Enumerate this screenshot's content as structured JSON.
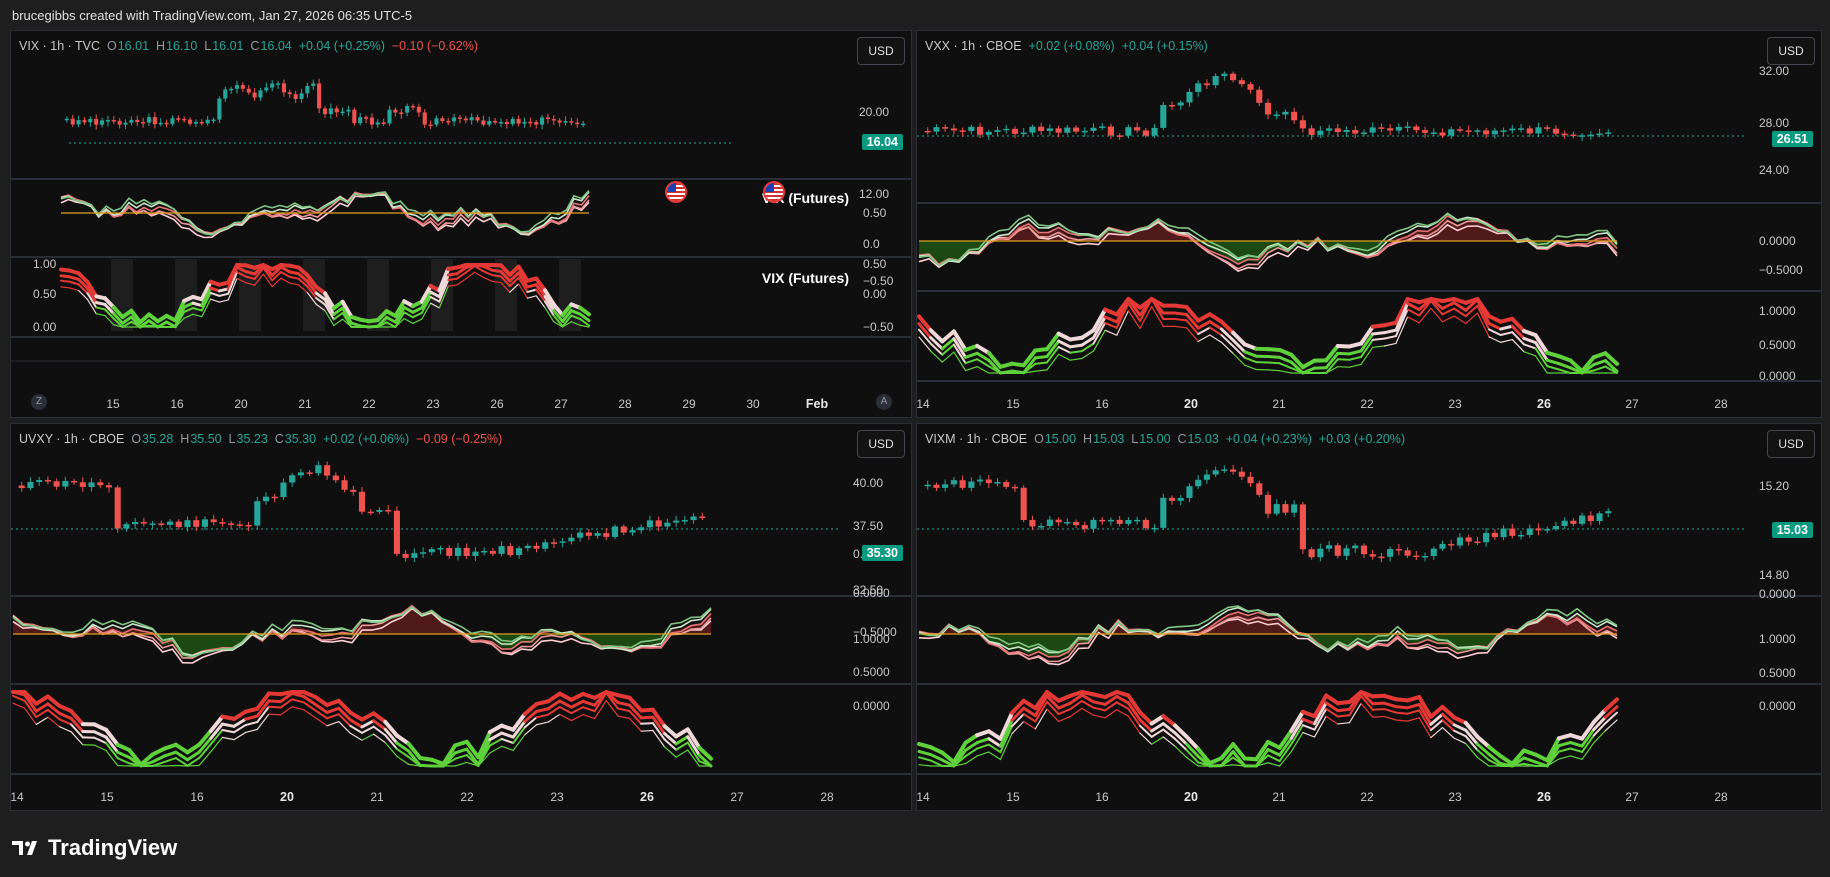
{
  "header": {
    "text": "brucegibbs created with TradingView.com, Jan 27, 2026 06:35 UTC-5"
  },
  "brand": {
    "name": "TradingView"
  },
  "colors": {
    "up": "#26a69a",
    "down": "#ef5350",
    "bg": "#0f0f0f"
  },
  "panels": [
    {
      "id": "vix",
      "legend": {
        "symbol": "VIX · 1h · TVC",
        "o": "16.01",
        "h": "16.10",
        "l": "16.01",
        "c": "16.04",
        "chg": "+0.04 (+0.25%)",
        "chg2": "−0.10 (−0.62%)"
      },
      "currency": "USD",
      "price": "16.04",
      "price_axis": [
        "20.00",
        "12.00"
      ],
      "osc1_axis": [
        "0.50",
        "0.0",
        "−0.50"
      ],
      "osc2_axis_left": [
        "1.00",
        "0.50",
        "0.00"
      ],
      "osc2_axis_right": [
        "0.50",
        "0.00",
        "−0.50"
      ],
      "osc_title": "VIX (Futures)",
      "time_axis": [
        "15",
        "16",
        "20",
        "21",
        "22",
        "23",
        "26",
        "27",
        "28",
        "29",
        "30",
        "Feb"
      ],
      "bold_ticks": [
        "Feb"
      ],
      "nav_left": "Z",
      "nav_right": "A"
    },
    {
      "id": "vxx",
      "legend": {
        "symbol": "VXX · 1h · CBOE",
        "chg": "+0.02 (+0.08%)",
        "chg2": "+0.04 (+0.15%)"
      },
      "currency": "USD",
      "price": "26.51",
      "price_axis": [
        "32.00",
        "28.00",
        "24.00"
      ],
      "osc1_axis": [
        "0.0000",
        "−0.5000"
      ],
      "osc2_axis": [
        "1.0000",
        "0.5000",
        "0.0000"
      ],
      "time_axis": [
        "14",
        "15",
        "16",
        "20",
        "21",
        "22",
        "23",
        "26",
        "27",
        "28"
      ],
      "bold_ticks": [
        "20",
        "26"
      ]
    },
    {
      "id": "uvxy",
      "legend": {
        "symbol": "UVXY · 1h · CBOE",
        "o": "35.28",
        "h": "35.50",
        "l": "35.23",
        "c": "35.30",
        "chg": "+0.02 (+0.06%)",
        "chg2": "−0.09 (−0.25%)"
      },
      "currency": "USD",
      "price": "35.30",
      "price_axis": [
        "40.00",
        "37.50",
        "32.50"
      ],
      "osc1_axis": [
        "0.5000",
        "0.0000",
        "−0.5000"
      ],
      "osc2_axis": [
        "1.0000",
        "0.5000",
        "0.0000"
      ],
      "time_axis": [
        "14",
        "15",
        "16",
        "20",
        "21",
        "22",
        "23",
        "26",
        "27",
        "28"
      ],
      "bold_ticks": [
        "20",
        "26"
      ]
    },
    {
      "id": "vixm",
      "legend": {
        "symbol": "VIXM · 1h · CBOE",
        "o": "15.00",
        "h": "15.03",
        "l": "15.00",
        "c": "15.03",
        "chg": "+0.04 (+0.23%)",
        "chg2": "+0.03 (+0.20%)"
      },
      "currency": "USD",
      "price": "15.03",
      "price_axis": [
        "15.20",
        "14.80"
      ],
      "osc1_axis": [
        "0.0000"
      ],
      "osc2_axis": [
        "1.0000",
        "0.5000",
        "0.0000"
      ],
      "time_axis": [
        "14",
        "15",
        "16",
        "20",
        "21",
        "22",
        "23",
        "26",
        "27",
        "28"
      ],
      "bold_ticks": [
        "20",
        "26"
      ]
    }
  ]
}
